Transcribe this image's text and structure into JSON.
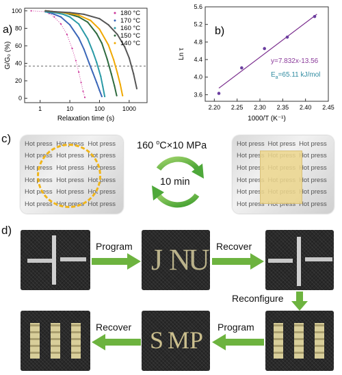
{
  "chart_data": [
    {
      "panel": "a)",
      "type": "line",
      "xlabel": "Relaxation time (s)",
      "ylabel": "G/G₀ (%)",
      "xscale": "log",
      "xlim": [
        0.3,
        4000
      ],
      "ylim": [
        -5,
        103
      ],
      "xticks": [
        {
          "v": 1,
          "label": "1"
        },
        {
          "v": 10,
          "label": "10"
        },
        {
          "v": 100,
          "label": "100"
        },
        {
          "v": 1000,
          "label": "1000"
        }
      ],
      "yticks": [
        0,
        20,
        40,
        60,
        80,
        100
      ],
      "reference_line_y": 36.8,
      "legend_position": "top-right",
      "series": [
        {
          "name": "180 °C",
          "color": "#cc3399",
          "x": [
            0.5,
            1.5,
            2,
            3,
            5,
            8,
            12,
            16,
            20,
            24,
            28,
            32
          ],
          "y": [
            100,
            99,
            97,
            93,
            85,
            73,
            57,
            43,
            30,
            18,
            8,
            1
          ]
        },
        {
          "name": "170 °C",
          "color": "#3a66b8",
          "x": [
            1.5,
            2,
            3,
            5,
            10,
            20,
            30,
            45,
            60,
            80,
            100,
            120
          ],
          "y": [
            99,
            98,
            96,
            93,
            84,
            69,
            56,
            40,
            29,
            18,
            9,
            2
          ]
        },
        {
          "name": "160 °C",
          "color": "#2a9aa6",
          "x": [
            1.5,
            3,
            6,
            10,
            20,
            40,
            60,
            80,
            110,
            130,
            150
          ],
          "y": [
            99,
            98,
            96,
            93,
            85,
            68,
            53,
            41,
            25,
            13,
            2
          ]
        },
        {
          "name": "150 °C",
          "color": "#2e6a3e",
          "x": [
            1.5,
            3,
            6,
            10,
            20,
            40,
            80,
            120,
            180,
            250,
            320,
            380
          ],
          "y": [
            100,
            99,
            98,
            96,
            93,
            87,
            74,
            63,
            45,
            28,
            14,
            3
          ]
        },
        {
          "name": "140 °C",
          "color": "#f0a800",
          "x": [
            1.5,
            3,
            6,
            10,
            20,
            50,
            100,
            200,
            300,
            400,
            500,
            600
          ],
          "y": [
            100,
            99,
            98,
            97,
            95,
            89,
            79,
            61,
            44,
            29,
            16,
            3
          ]
        },
        {
          "name": "",
          "color": "#555555",
          "x": [
            1.5,
            3,
            10,
            30,
            100,
            200,
            400,
            700,
            1000,
            1400,
            1800
          ],
          "y": [
            100,
            99,
            98,
            96,
            91,
            84,
            73,
            59,
            46,
            28,
            11
          ]
        }
      ]
    },
    {
      "panel": "b)",
      "type": "scatter",
      "xlabel": "1000/T (K⁻¹)",
      "ylabel": "Ln τ",
      "xlim": [
        2.18,
        2.45
      ],
      "ylim": [
        3.45,
        5.6
      ],
      "xticks": [
        2.2,
        2.25,
        2.3,
        2.35,
        2.4,
        2.45
      ],
      "yticks": [
        3.6,
        4.0,
        4.4,
        4.8,
        5.2,
        5.6
      ],
      "points": {
        "color": "#6b3fa0",
        "x": [
          2.21,
          2.26,
          2.31,
          2.36,
          2.42
        ],
        "y": [
          3.63,
          4.21,
          4.65,
          4.91,
          5.38
        ]
      },
      "fit_line": {
        "color": "#7b2e8e",
        "slope": 7.832,
        "intercept": -13.56,
        "x_from": 2.21,
        "x_to": 2.425
      },
      "annotations": {
        "equation": "y=7.832x-13.56",
        "ea_prefix": "E",
        "ea_sub": "a",
        "ea_value": "=65.11 kJ/mol"
      }
    }
  ],
  "panel_c": {
    "letter": "c)",
    "condition_main": "160 ",
    "condition_sup": "o",
    "condition_rest": "C×10 MPa",
    "cycle_time": "10 min",
    "card_text": "Hot press"
  },
  "panel_d": {
    "letter": "d)",
    "arrows": {
      "program_1": "Program",
      "recover_1": "Recover",
      "reconfigure": "Reconfigure",
      "program_2": "Program",
      "recover_2": "Recover"
    },
    "photo_letters_top": [
      "J",
      "N",
      "U"
    ],
    "photo_letters_bottom": [
      "S",
      "M",
      "P"
    ]
  }
}
